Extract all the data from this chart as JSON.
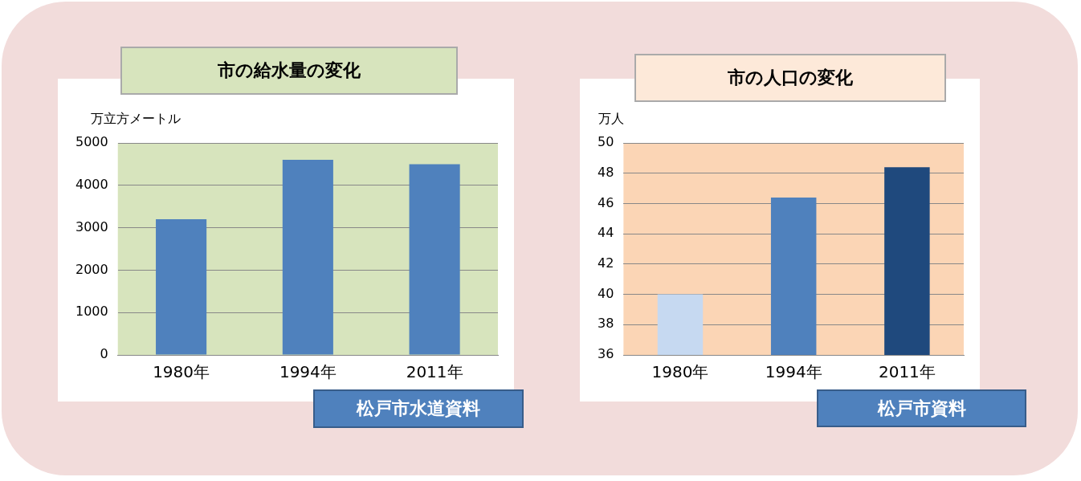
{
  "chart_data": [
    {
      "type": "bar",
      "title": "市の給水量の変化",
      "ylabel": "万立方メートル",
      "categories": [
        "1980年",
        "1994年",
        "2011年"
      ],
      "values": [
        3200,
        4600,
        4500
      ],
      "color": "#4f81bd",
      "ylim": [
        0,
        5000
      ],
      "yticks": [
        0,
        1000,
        2000,
        3000,
        4000,
        5000
      ],
      "grid": "y",
      "legend": false,
      "annotations": [
        "松戸市水道資料"
      ]
    },
    {
      "type": "bar",
      "title": "市の人口の変化",
      "ylabel": "万人",
      "categories": [
        "1980年",
        "1994年",
        "2011年"
      ],
      "values": [
        40,
        46.4,
        48.4
      ],
      "colors": [
        "#c6d9f1",
        "#4f81bd",
        "#1f497d"
      ],
      "ylim": [
        36,
        50
      ],
      "yticks": [
        36,
        38,
        40,
        42,
        44,
        46,
        48,
        50
      ],
      "grid": "y",
      "legend": false,
      "annotations": [
        "松戸市資料"
      ]
    }
  ]
}
